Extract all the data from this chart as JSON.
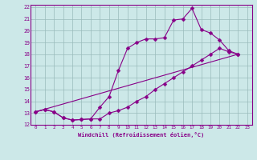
{
  "xlabel": "Windchill (Refroidissement éolien,°C)",
  "bg_color": "#cce8e8",
  "grid_color": "#99bbbb",
  "line_color": "#880088",
  "xlim": [
    -0.5,
    23.5
  ],
  "ylim": [
    12,
    22.2
  ],
  "xticks": [
    0,
    1,
    2,
    3,
    4,
    5,
    6,
    7,
    8,
    9,
    10,
    11,
    12,
    13,
    14,
    15,
    16,
    17,
    18,
    19,
    20,
    21,
    22,
    23
  ],
  "yticks": [
    12,
    13,
    14,
    15,
    16,
    17,
    18,
    19,
    20,
    21,
    22
  ],
  "line1_x": [
    0,
    1,
    2,
    3,
    4,
    5,
    6,
    7,
    8,
    9,
    10,
    11,
    12,
    13,
    14,
    15,
    16,
    17,
    18,
    19,
    20,
    21,
    22
  ],
  "line1_y": [
    13.1,
    13.3,
    13.1,
    12.6,
    12.4,
    12.45,
    12.5,
    12.5,
    13.0,
    13.2,
    13.5,
    14.0,
    14.4,
    15.0,
    15.5,
    16.0,
    16.5,
    17.0,
    17.5,
    18.0,
    18.5,
    18.2,
    18.0
  ],
  "line2_x": [
    0,
    1,
    2,
    3,
    4,
    5,
    6,
    7,
    8,
    9,
    10,
    11,
    12,
    13,
    14,
    15,
    16,
    17,
    18,
    19,
    20,
    21,
    22
  ],
  "line2_y": [
    13.1,
    13.3,
    13.1,
    12.6,
    12.4,
    12.45,
    12.5,
    13.5,
    14.4,
    16.6,
    18.5,
    19.0,
    19.3,
    19.3,
    19.4,
    20.9,
    21.0,
    21.9,
    20.1,
    19.8,
    19.2,
    18.3,
    18.0
  ],
  "line3_x": [
    0,
    22
  ],
  "line3_y": [
    13.1,
    18.0
  ],
  "marker": "D",
  "markersize": 2.5,
  "linewidth": 0.8
}
